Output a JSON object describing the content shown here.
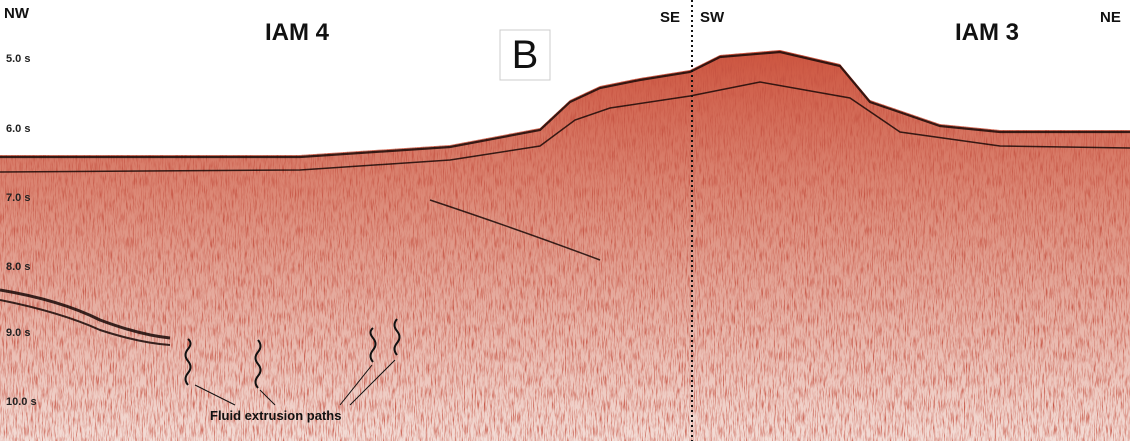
{
  "figure": {
    "panel_label": "B",
    "left_profile": {
      "name": "IAM 4",
      "start": "NW",
      "end": "SE"
    },
    "right_profile": {
      "name": "IAM 3",
      "start": "SW",
      "end": "NE"
    },
    "time_labels": [
      "5.0 s",
      "6.0 s",
      "7.0 s",
      "8.0 s",
      "9.0 s",
      "10.0 s"
    ],
    "annotation": "Fluid extrusion paths"
  }
}
